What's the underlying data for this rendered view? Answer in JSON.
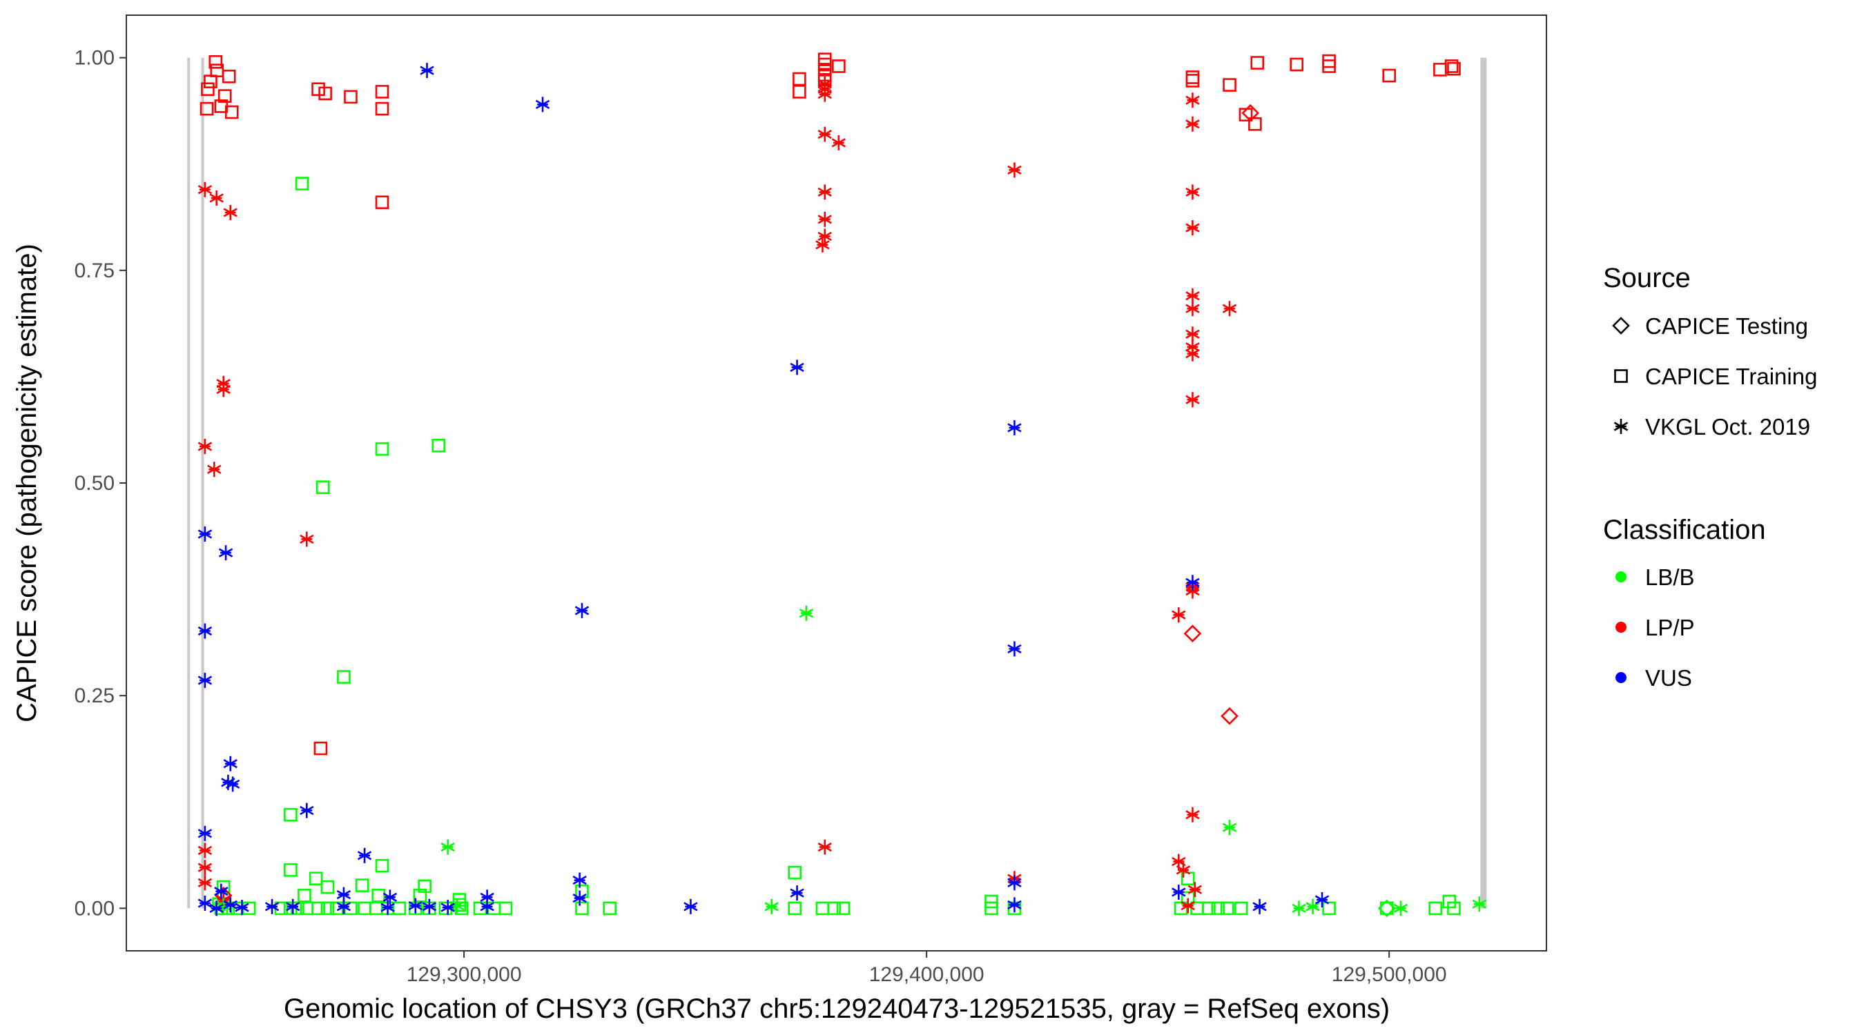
{
  "chart_data": {
    "type": "scatter",
    "xlabel": "Genomic location of CHSY3 (GRCh37 chr5:129240473-129521535, gray = RefSeq exons)",
    "ylabel": "CAPICE score (pathogenicity estimate)",
    "xlim": [
      129227000,
      129534000
    ],
    "ylim": [
      -0.05,
      1.05
    ],
    "x_ticks": [
      129300000,
      129400000,
      129500000
    ],
    "x_tick_labels": [
      "129,300,000",
      "129,400,000",
      "129,500,000"
    ],
    "y_ticks": [
      0,
      0.25,
      0.5,
      0.75,
      1.0
    ],
    "y_tick_labels": [
      "0.00",
      "0.25",
      "0.50",
      "0.75",
      "1.00"
    ],
    "grid": false,
    "exons": [
      {
        "x": 129240473,
        "ymin": 0,
        "ymax": 1
      },
      {
        "x": 129243500,
        "ymin": 0,
        "ymax": 1
      },
      {
        "x": 129520400,
        "ymin": 0,
        "ymax": 1
      }
    ],
    "legend_source": {
      "title": "Source",
      "entries": [
        {
          "label": "CAPICE Testing",
          "shape": "diamond"
        },
        {
          "label": "CAPICE Training",
          "shape": "square"
        },
        {
          "label": "VKGL Oct. 2019",
          "shape": "asterisk"
        }
      ]
    },
    "legend_classification": {
      "title": "Classification",
      "entries": [
        {
          "label": "LB/B",
          "color": "#00ff00"
        },
        {
          "label": "LP/P",
          "color": "#ff0000"
        },
        {
          "label": "VUS",
          "color": "#0000ff"
        }
      ]
    },
    "legend_position": "right",
    "series": [
      {
        "source": "CAPICE Training",
        "classification": "LP/P",
        "points": [
          [
            129246300,
            0.995
          ],
          [
            129246600,
            0.985
          ],
          [
            129245200,
            0.972
          ],
          [
            129244600,
            0.963
          ],
          [
            129249200,
            0.978
          ],
          [
            129248300,
            0.955
          ],
          [
            129247500,
            0.943
          ],
          [
            129249800,
            0.936
          ],
          [
            129244400,
            0.94
          ],
          [
            129268500,
            0.963
          ],
          [
            129270000,
            0.958
          ],
          [
            129275500,
            0.954
          ],
          [
            129282300,
            0.96
          ],
          [
            129282300,
            0.94
          ],
          [
            129282300,
            0.83
          ],
          [
            129269000,
            0.188
          ],
          [
            129372500,
            0.975
          ],
          [
            129372500,
            0.96
          ],
          [
            129378000,
            0.998
          ],
          [
            129378000,
            0.992
          ],
          [
            129378000,
            0.986
          ],
          [
            129378000,
            0.98
          ],
          [
            129378000,
            0.974
          ],
          [
            129381000,
            0.99
          ],
          [
            129457500,
            0.977
          ],
          [
            129457500,
            0.973
          ],
          [
            129465500,
            0.968
          ],
          [
            129469000,
            0.933
          ],
          [
            129471000,
            0.922
          ],
          [
            129471500,
            0.994
          ],
          [
            129480000,
            0.992
          ],
          [
            129487000,
            0.996
          ],
          [
            129487000,
            0.99
          ],
          [
            129500000,
            0.979
          ],
          [
            129511000,
            0.986
          ],
          [
            129513500,
            0.99
          ],
          [
            129514000,
            0.987
          ]
        ]
      },
      {
        "source": "CAPICE Training",
        "classification": "LB/B",
        "points": [
          [
            129265000,
            0.852
          ],
          [
            129282300,
            0.54
          ],
          [
            129294500,
            0.544
          ],
          [
            129269500,
            0.495
          ],
          [
            129274000,
            0.272
          ],
          [
            129262500,
            0.11
          ],
          [
            129262500,
            0.045
          ],
          [
            129282300,
            0.05
          ],
          [
            129278000,
            0.027
          ],
          [
            129291500,
            0.026
          ],
          [
            129268000,
            0.035
          ],
          [
            129270500,
            0.025
          ],
          [
            129265500,
            0.015
          ],
          [
            129281500,
            0.015
          ],
          [
            129290500,
            0.015
          ],
          [
            129299000,
            0.01
          ],
          [
            129299000,
            0.004
          ],
          [
            129248000,
            0.025
          ],
          [
            129248000,
            0.012
          ],
          [
            129247000,
            0.005
          ],
          [
            129247500,
            0.0
          ],
          [
            129249000,
            0.0
          ],
          [
            129251000,
            0.0
          ],
          [
            129253500,
            0.0
          ],
          [
            129260500,
            0.0
          ],
          [
            129262500,
            0.0
          ],
          [
            129264000,
            0.0
          ],
          [
            129266000,
            0.0
          ],
          [
            129268500,
            0.0
          ],
          [
            129270500,
            0.0
          ],
          [
            129272500,
            0.0
          ],
          [
            129275500,
            0.0
          ],
          [
            129278500,
            0.0
          ],
          [
            129281000,
            0.0
          ],
          [
            129283500,
            0.0
          ],
          [
            129286000,
            0.0
          ],
          [
            129289500,
            0.0
          ],
          [
            129292500,
            0.0
          ],
          [
            129296000,
            0.0
          ],
          [
            129299500,
            0.0
          ],
          [
            129303500,
            0.0
          ],
          [
            129306500,
            0.0
          ],
          [
            129309000,
            0.0
          ],
          [
            129325500,
            0.0
          ],
          [
            129325500,
            0.02
          ],
          [
            129331500,
            0.0
          ],
          [
            129371500,
            0.042
          ],
          [
            129371500,
            0.0
          ],
          [
            129377500,
            0.0
          ],
          [
            129380000,
            0.0
          ],
          [
            129382000,
            0.0
          ],
          [
            129414000,
            0.008
          ],
          [
            129414000,
            0.0
          ],
          [
            129419000,
            0.0
          ],
          [
            129455000,
            0.0
          ],
          [
            129456500,
            0.035
          ],
          [
            129456500,
            0.012
          ],
          [
            129458500,
            0.0
          ],
          [
            129461000,
            0.0
          ],
          [
            129463000,
            0.0
          ],
          [
            129465000,
            0.0
          ],
          [
            129468000,
            0.0
          ],
          [
            129487000,
            0.0
          ],
          [
            129499500,
            0.0
          ],
          [
            129510000,
            0.0
          ],
          [
            129513000,
            0.008
          ],
          [
            129514000,
            0.0
          ]
        ]
      },
      {
        "source": "CAPICE Testing",
        "classification": "LP/P",
        "points": [
          [
            129470000,
            0.935
          ],
          [
            129457500,
            0.323
          ],
          [
            129465500,
            0.226
          ],
          [
            129248000,
            0.015
          ]
        ]
      },
      {
        "source": "CAPICE Testing",
        "classification": "LB/B",
        "points": [
          [
            129499500,
            0.0
          ]
        ]
      },
      {
        "source": "VKGL Oct. 2019",
        "classification": "LP/P",
        "points": [
          [
            129244000,
            0.845
          ],
          [
            129246500,
            0.835
          ],
          [
            129249500,
            0.818
          ],
          [
            129248000,
            0.617
          ],
          [
            129248000,
            0.61
          ],
          [
            129244000,
            0.543
          ],
          [
            129246000,
            0.516
          ],
          [
            129266000,
            0.434
          ],
          [
            129244000,
            0.068
          ],
          [
            129244000,
            0.048
          ],
          [
            129244000,
            0.03
          ],
          [
            129248000,
            0.01
          ],
          [
            129378000,
            0.969
          ],
          [
            129378000,
            0.963
          ],
          [
            129378000,
            0.957
          ],
          [
            129378000,
            0.91
          ],
          [
            129381000,
            0.9
          ],
          [
            129378000,
            0.842
          ],
          [
            129378000,
            0.81
          ],
          [
            129378000,
            0.79
          ],
          [
            129377500,
            0.78
          ],
          [
            129378000,
            0.072
          ],
          [
            129419000,
            0.868
          ],
          [
            129419000,
            0.035
          ],
          [
            129457500,
            0.95
          ],
          [
            129457500,
            0.922
          ],
          [
            129457500,
            0.842
          ],
          [
            129457500,
            0.8
          ],
          [
            129457500,
            0.72
          ],
          [
            129457500,
            0.705
          ],
          [
            129465500,
            0.705
          ],
          [
            129457500,
            0.675
          ],
          [
            129457500,
            0.66
          ],
          [
            129457500,
            0.652
          ],
          [
            129457500,
            0.598
          ],
          [
            129457500,
            0.378
          ],
          [
            129457500,
            0.373
          ],
          [
            129454500,
            0.345
          ],
          [
            129457500,
            0.11
          ],
          [
            129454500,
            0.055
          ],
          [
            129455500,
            0.045
          ],
          [
            129458000,
            0.022
          ],
          [
            129456500,
            0.003
          ]
        ]
      },
      {
        "source": "VKGL Oct. 2019",
        "classification": "LB/B",
        "points": [
          [
            129296500,
            0.072
          ],
          [
            129374000,
            0.347
          ],
          [
            129465500,
            0.095
          ],
          [
            129366500,
            0.002
          ],
          [
            129248000,
            0.003
          ],
          [
            129298500,
            0.003
          ],
          [
            129480500,
            0.0
          ],
          [
            129483500,
            0.002
          ],
          [
            129519500,
            0.005
          ],
          [
            129502500,
            0.0
          ]
        ]
      },
      {
        "source": "VKGL Oct. 2019",
        "classification": "VUS",
        "points": [
          [
            129292000,
            0.985
          ],
          [
            129317000,
            0.945
          ],
          [
            129372000,
            0.636
          ],
          [
            129419000,
            0.565
          ],
          [
            129244000,
            0.44
          ],
          [
            129248500,
            0.418
          ],
          [
            129325500,
            0.35
          ],
          [
            129244000,
            0.326
          ],
          [
            129419000,
            0.305
          ],
          [
            129244000,
            0.268
          ],
          [
            129457500,
            0.383
          ],
          [
            129249500,
            0.17
          ],
          [
            129249000,
            0.148
          ],
          [
            129250000,
            0.146
          ],
          [
            129266000,
            0.115
          ],
          [
            129244000,
            0.088
          ],
          [
            129278500,
            0.062
          ],
          [
            129325000,
            0.033
          ],
          [
            129419000,
            0.03
          ],
          [
            129247500,
            0.02
          ],
          [
            129274000,
            0.016
          ],
          [
            129284000,
            0.013
          ],
          [
            129305000,
            0.013
          ],
          [
            129325000,
            0.012
          ],
          [
            129372000,
            0.018
          ],
          [
            129454500,
            0.019
          ],
          [
            129485500,
            0.01
          ],
          [
            129244000,
            0.006
          ],
          [
            129249500,
            0.004
          ],
          [
            129258500,
            0.002
          ],
          [
            129263000,
            0.002
          ],
          [
            129274000,
            0.002
          ],
          [
            129283500,
            0.001
          ],
          [
            129289500,
            0.003
          ],
          [
            129292500,
            0.002
          ],
          [
            129296500,
            0.001
          ],
          [
            129305000,
            0.002
          ],
          [
            129349000,
            0.002
          ],
          [
            129419000,
            0.004
          ],
          [
            129472000,
            0.002
          ],
          [
            129246500,
            0.0
          ],
          [
            129252000,
            0.001
          ]
        ]
      }
    ]
  }
}
